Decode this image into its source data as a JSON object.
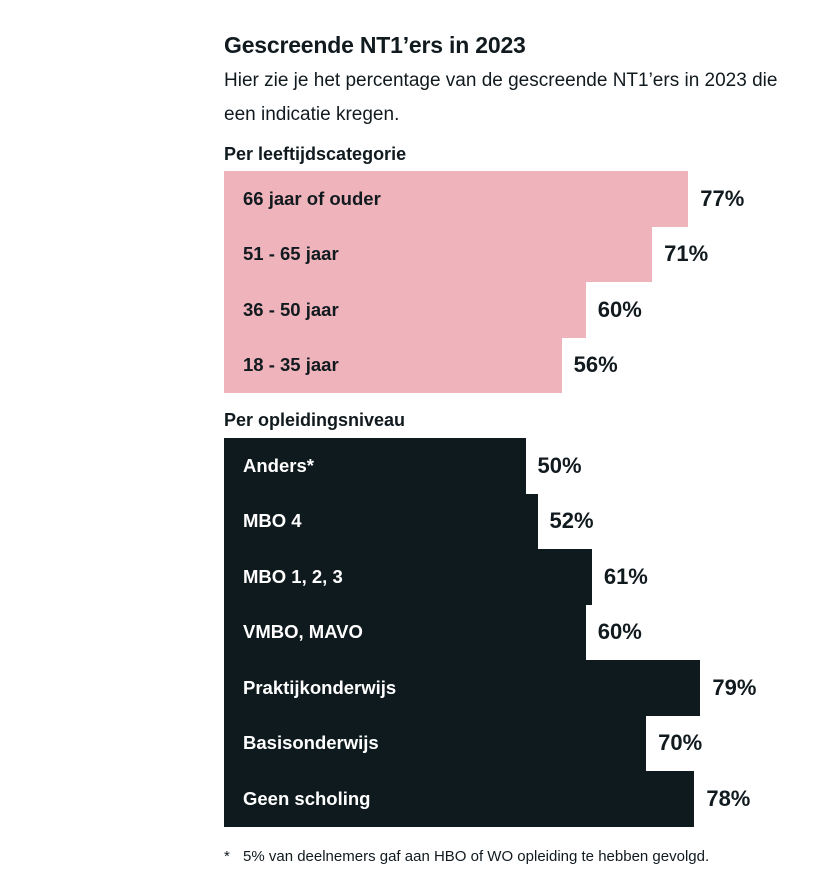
{
  "title": "Gescreende NT1’ers in 2023",
  "subtitle": "Hier zie je het percentage van de gescreende NT1’ers in 2023 die een indicatie kregen.",
  "footnote": {
    "marker": "*",
    "text": "5% van deelnemers gaf aan HBO of WO opleiding te hebben gevolgd."
  },
  "colors": {
    "age_bars": "#efb4bb",
    "education_bars": "#0f1a1e"
  },
  "chart_data": [
    {
      "type": "bar",
      "orientation": "horizontal",
      "title": "Per leeftijdscategorie",
      "categories": [
        "66 jaar of ouder",
        "51 - 65 jaar",
        "36 - 50 jaar",
        "18 - 35 jaar"
      ],
      "values": [
        77,
        71,
        60,
        56
      ],
      "value_labels": [
        "77%",
        "71%",
        "60%",
        "56%"
      ],
      "unit": "%",
      "xlim": [
        0,
        100
      ]
    },
    {
      "type": "bar",
      "orientation": "horizontal",
      "title": "Per opleidingsniveau",
      "categories": [
        "Anders*",
        "MBO 4",
        "MBO 1, 2, 3",
        "VMBO, MAVO",
        "Praktijkonderwijs",
        "Basisonderwijs",
        "Geen scholing"
      ],
      "values": [
        50,
        52,
        61,
        60,
        79,
        70,
        78
      ],
      "value_labels": [
        "50%",
        "52%",
        "61%",
        "60%",
        "79%",
        "70%",
        "78%"
      ],
      "unit": "%",
      "xlim": [
        0,
        100
      ]
    }
  ]
}
